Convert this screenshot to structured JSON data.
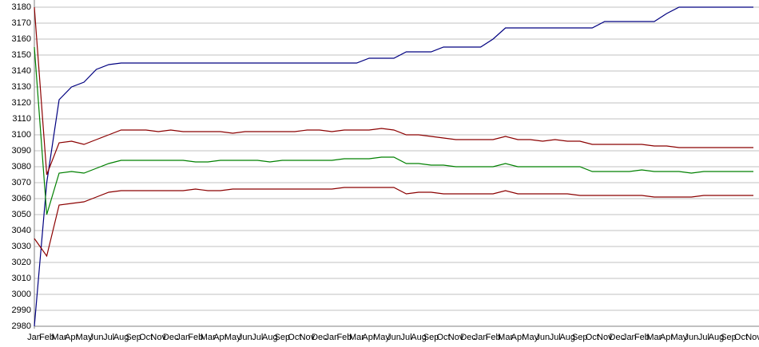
{
  "chart_data": {
    "type": "line",
    "categories": [
      "Jan",
      "Feb",
      "Mar",
      "Apr",
      "May",
      "Jun",
      "Jul",
      "Aug",
      "Sep",
      "Oct",
      "Nov",
      "Dec",
      "Jan",
      "Feb",
      "Mar",
      "Apr",
      "May",
      "Jun",
      "Jul",
      "Aug",
      "Sep",
      "Oct",
      "Nov",
      "Dec",
      "Jan",
      "Feb",
      "Mar",
      "Apr",
      "May",
      "Jun",
      "Jul",
      "Aug",
      "Sep",
      "Oct",
      "Nov",
      "Dec",
      "Jan",
      "Feb",
      "Mar",
      "Apr",
      "May",
      "Jun",
      "Jul",
      "Aug",
      "Sep",
      "Oct",
      "Nov",
      "Dec",
      "Jan",
      "Feb",
      "Mar",
      "Apr",
      "May",
      "Jun",
      "Jul",
      "Aug",
      "Sep",
      "Oct",
      "Nov"
    ],
    "ylim": [
      2980,
      3180
    ],
    "yticks": [
      2980,
      2990,
      3000,
      3010,
      3020,
      3030,
      3040,
      3050,
      3060,
      3070,
      3080,
      3090,
      3100,
      3110,
      3120,
      3130,
      3140,
      3150,
      3160,
      3170,
      3180
    ],
    "grid": true,
    "series": [
      {
        "color": "#000080",
        "values": [
          2980,
          3070,
          3122,
          3130,
          3133,
          3141,
          3144,
          3145,
          3145,
          3145,
          3145,
          3145,
          3145,
          3145,
          3145,
          3145,
          3145,
          3145,
          3145,
          3145,
          3145,
          3145,
          3145,
          3145,
          3145,
          3145,
          3145,
          3148,
          3148,
          3148,
          3152,
          3152,
          3152,
          3155,
          3155,
          3155,
          3155,
          3160,
          3167,
          3167,
          3167,
          3167,
          3167,
          3167,
          3167,
          3167,
          3171,
          3171,
          3171,
          3171,
          3171,
          3176,
          3180,
          3180,
          3180,
          3180,
          3180,
          3180,
          3180
        ]
      },
      {
        "color": "#8b0000",
        "values": [
          3180,
          3075,
          3095,
          3096,
          3094,
          3097,
          3100,
          3103,
          3103,
          3103,
          3102,
          3103,
          3102,
          3102,
          3102,
          3102,
          3101,
          3102,
          3102,
          3102,
          3102,
          3102,
          3103,
          3103,
          3102,
          3103,
          3103,
          3103,
          3104,
          3103,
          3100,
          3100,
          3099,
          3098,
          3097,
          3097,
          3097,
          3097,
          3099,
          3097,
          3097,
          3096,
          3097,
          3096,
          3096,
          3094,
          3094,
          3094,
          3094,
          3094,
          3093,
          3093,
          3092,
          3092,
          3092,
          3092,
          3092,
          3092,
          3092
        ]
      },
      {
        "color": "#008000",
        "values": [
          3155,
          3050,
          3076,
          3077,
          3076,
          3079,
          3082,
          3084,
          3084,
          3084,
          3084,
          3084,
          3084,
          3083,
          3083,
          3084,
          3084,
          3084,
          3084,
          3083,
          3084,
          3084,
          3084,
          3084,
          3084,
          3085,
          3085,
          3085,
          3086,
          3086,
          3082,
          3082,
          3081,
          3081,
          3080,
          3080,
          3080,
          3080,
          3082,
          3080,
          3080,
          3080,
          3080,
          3080,
          3080,
          3077,
          3077,
          3077,
          3077,
          3078,
          3077,
          3077,
          3077,
          3076,
          3077,
          3077,
          3077,
          3077,
          3077
        ]
      },
      {
        "color": "#8b0000",
        "values": [
          3035,
          3024,
          3056,
          3057,
          3058,
          3061,
          3064,
          3065,
          3065,
          3065,
          3065,
          3065,
          3065,
          3066,
          3065,
          3065,
          3066,
          3066,
          3066,
          3066,
          3066,
          3066,
          3066,
          3066,
          3066,
          3067,
          3067,
          3067,
          3067,
          3067,
          3063,
          3064,
          3064,
          3063,
          3063,
          3063,
          3063,
          3063,
          3065,
          3063,
          3063,
          3063,
          3063,
          3063,
          3062,
          3062,
          3062,
          3062,
          3062,
          3062,
          3061,
          3061,
          3061,
          3061,
          3062,
          3062,
          3062,
          3062,
          3062
        ]
      }
    ]
  }
}
